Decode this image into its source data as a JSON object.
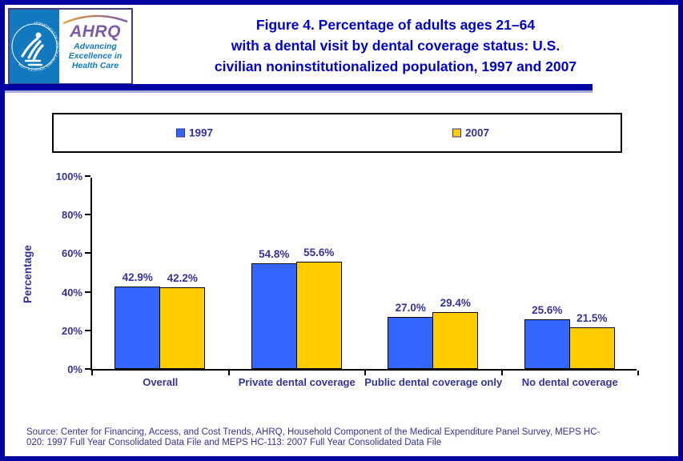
{
  "header": {
    "logo": {
      "seal_text": "DEPARTMENT OF HEALTH & HUMAN SERVICES · USA",
      "brand": "AHRQ",
      "tagline_lines": [
        "Advancing",
        "Excellence in",
        "Health Care"
      ]
    },
    "title_lines": [
      "Figure 4. Percentage of adults ages 21–64",
      "with a dental visit by dental coverage status: U.S.",
      "civilian noninstitutionalized population, 1997 and 2007"
    ]
  },
  "legend": {
    "items": [
      {
        "label": "1997",
        "color": "#3366FF"
      },
      {
        "label": "2007",
        "color": "#FFCC00"
      }
    ]
  },
  "chart_data": {
    "type": "bar",
    "title": "Figure 4. Percentage of adults ages 21–64 with a dental visit by dental coverage status: U.S. civilian noninstitutionalized population, 1997 and 2007",
    "categories": [
      "Overall",
      "Private dental coverage",
      "Public dental coverage only",
      "No dental coverage"
    ],
    "series": [
      {
        "name": "1997",
        "color": "#3366FF",
        "values": [
          42.9,
          54.8,
          27.0,
          25.6
        ]
      },
      {
        "name": "2007",
        "color": "#FFCC00",
        "values": [
          42.2,
          55.6,
          29.4,
          21.5
        ]
      }
    ],
    "xlabel": "",
    "ylabel": "Percentage",
    "ylim": [
      0,
      100
    ],
    "yticks": [
      "0%",
      "20%",
      "40%",
      "60%",
      "80%",
      "100%"
    ],
    "value_suffix": "%",
    "grid": false,
    "legend_position": "top"
  },
  "source": {
    "lines": [
      "Source: Center for Financing, Access, and Cost Trends, AHRQ, Household Component of the Medical Expenditure Panel Survey, MEPS HC-",
      "020: 1997 Full Year Consolidated Data File and MEPS HC-113: 2007 Full Year Consolidated Data File"
    ]
  },
  "colors": {
    "frame": "#0000A0",
    "rule_light": "#A9A9DC",
    "title_text": "#0000CC",
    "label_text": "#333399",
    "bar_1997": "#3366FF",
    "bar_2007": "#FFCC00",
    "seal_background": "#1279BF",
    "ahrq_purple": "#7C5AA5"
  }
}
